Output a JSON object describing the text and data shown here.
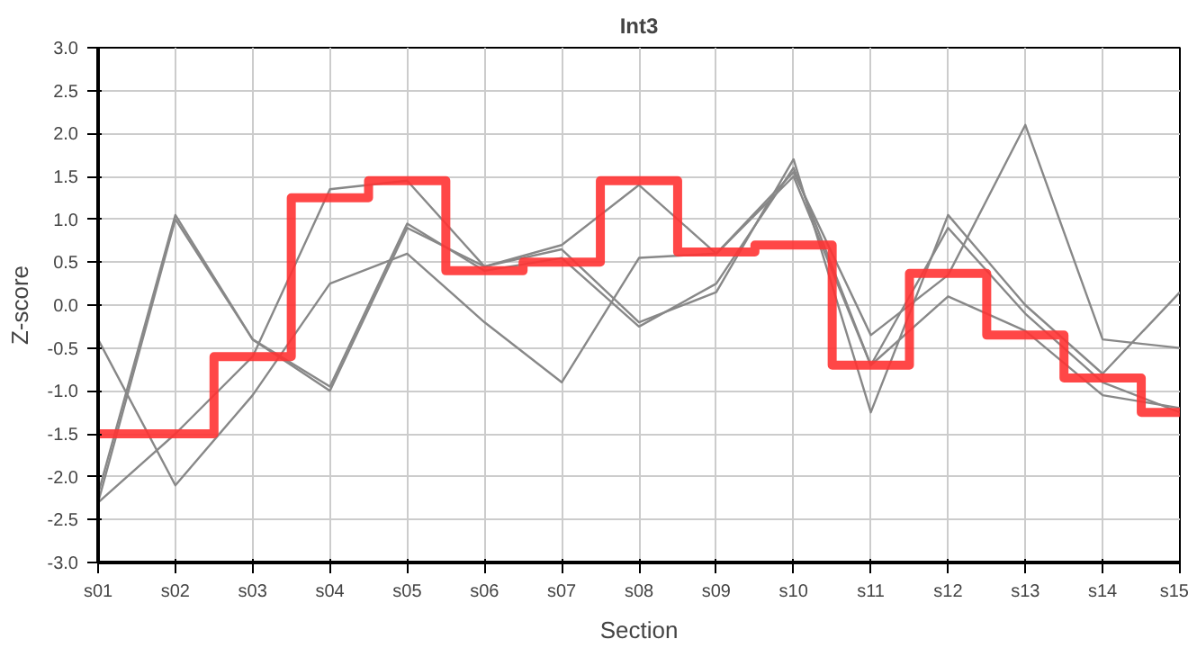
{
  "chart_data": {
    "type": "line",
    "title": "Int3",
    "xlabel": "Section",
    "ylabel": "Z-score",
    "categories": [
      "s01",
      "s02",
      "s03",
      "s04",
      "s05",
      "s06",
      "s07",
      "s08",
      "s09",
      "s10",
      "s11",
      "s12",
      "s13",
      "s14",
      "s15"
    ],
    "ylim": [
      -3,
      3
    ],
    "yticks": [
      {
        "value": -3,
        "label": "-3.0"
      },
      {
        "value": -2.5,
        "label": "-2.5"
      },
      {
        "value": -2,
        "label": "-2.0"
      },
      {
        "value": -1.5,
        "label": "-1.5"
      },
      {
        "value": -1,
        "label": "-1.0"
      },
      {
        "value": -0.5,
        "label": "-0.5"
      },
      {
        "value": 0,
        "label": "0.0"
      },
      {
        "value": 0.5,
        "label": "0.5"
      },
      {
        "value": 1,
        "label": "1.0"
      },
      {
        "value": 1.5,
        "label": "1.5"
      },
      {
        "value": 2,
        "label": "2.0"
      },
      {
        "value": 2.5,
        "label": "2.5"
      },
      {
        "value": 3,
        "label": "3.0"
      }
    ],
    "grid": true,
    "series": [
      {
        "color": "#888888",
        "values": [
          -2.3,
          1.0,
          -0.4,
          -1.0,
          0.9,
          0.45,
          0.65,
          -0.2,
          0.15,
          1.7,
          -1.25,
          1.05,
          0.0,
          -0.8,
          0.15
        ]
      },
      {
        "color": "#888888",
        "values": [
          -2.2,
          1.05,
          -0.4,
          -0.95,
          0.95,
          0.4,
          0.55,
          -0.25,
          0.25,
          1.6,
          -0.7,
          0.9,
          -0.1,
          -0.9,
          -1.25
        ]
      },
      {
        "color": "#888888",
        "values": [
          -0.4,
          -2.1,
          -1.05,
          0.25,
          0.6,
          -0.2,
          -0.9,
          0.55,
          0.6,
          1.55,
          -0.35,
          0.35,
          2.1,
          -0.4,
          -0.5
        ]
      },
      {
        "color": "#888888",
        "values": [
          -2.3,
          -1.5,
          -0.6,
          1.35,
          1.45,
          0.45,
          0.7,
          1.4,
          0.6,
          1.5,
          -0.7,
          0.1,
          -0.3,
          -1.05,
          -1.2
        ]
      },
      {
        "type": "step",
        "color": "#ff3333",
        "values": [
          -1.5,
          -1.5,
          -0.6,
          1.25,
          1.45,
          0.4,
          0.5,
          1.45,
          0.62,
          0.7,
          -0.7,
          0.37,
          -0.35,
          -0.85,
          -1.25
        ]
      }
    ]
  }
}
